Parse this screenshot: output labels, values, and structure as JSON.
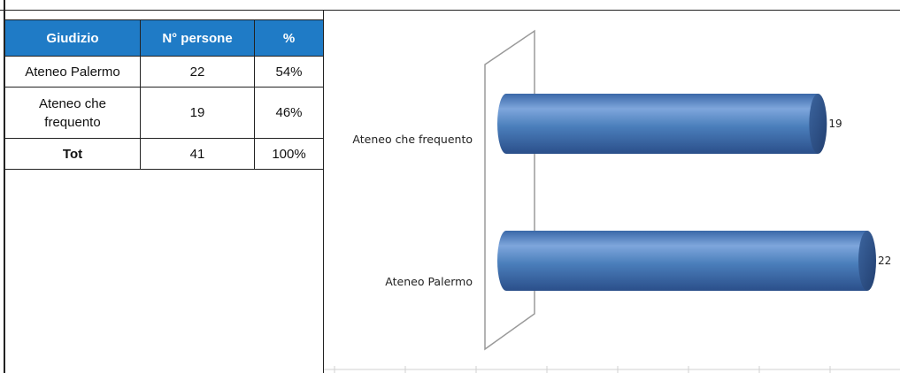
{
  "table": {
    "headers": [
      "Giudizio",
      "N° persone",
      "%"
    ],
    "rows": [
      {
        "giudizio": "Ateneo Palermo",
        "persone": "22",
        "pct": "54%"
      },
      {
        "giudizio": "Ateneo che frequento",
        "persone": "19",
        "pct": "46%"
      },
      {
        "giudizio": "Tot",
        "persone": "41",
        "pct": "100%"
      }
    ]
  },
  "colors": {
    "header_bg": "#1f7bc6",
    "bar_main": "#4a7ebb",
    "bar_dark": "#2f5597"
  },
  "chart_data": {
    "type": "bar",
    "orientation": "horizontal",
    "style": "3d-cylinder",
    "categories": [
      "Ateneo Palermo",
      "Ateneo che frequento"
    ],
    "values": [
      22,
      19
    ],
    "data_labels": [
      "22",
      "19"
    ],
    "xlim": [
      0,
      22
    ],
    "grid": false,
    "legend": "none"
  }
}
